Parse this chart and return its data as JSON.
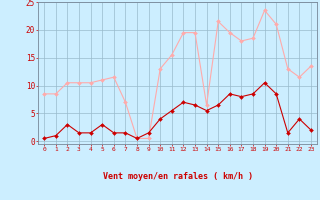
{
  "x": [
    0,
    1,
    2,
    3,
    4,
    5,
    6,
    7,
    8,
    9,
    10,
    11,
    12,
    13,
    14,
    15,
    16,
    17,
    18,
    19,
    20,
    21,
    22,
    23
  ],
  "rafales": [
    8.5,
    8.5,
    10.5,
    10.5,
    10.5,
    11.0,
    11.5,
    7.0,
    0.5,
    0.5,
    13.0,
    15.5,
    19.5,
    19.5,
    6.5,
    21.5,
    19.5,
    18.0,
    18.5,
    23.5,
    21.0,
    13.0,
    11.5,
    13.5
  ],
  "moyen": [
    0.5,
    1.0,
    3.0,
    1.5,
    1.5,
    3.0,
    1.5,
    1.5,
    0.5,
    1.5,
    4.0,
    5.5,
    7.0,
    6.5,
    5.5,
    6.5,
    8.5,
    8.0,
    8.5,
    10.5,
    8.5,
    1.5,
    4.0,
    2.0
  ],
  "rafales_color": "#ffaaaa",
  "moyen_color": "#cc0000",
  "bg_color": "#cceeff",
  "grid_color": "#99bbcc",
  "xlabel": "Vent moyen/en rafales ( km/h )",
  "xlabel_color": "#cc0000",
  "tick_color": "#cc0000",
  "ylim": [
    -0.5,
    25
  ],
  "yticks": [
    0,
    5,
    10,
    15,
    20,
    25
  ],
  "xlim": [
    -0.5,
    23.5
  ],
  "arrow_angles": [
    225,
    225,
    225,
    225,
    225,
    225,
    225,
    225,
    225,
    225,
    270,
    270,
    270,
    270,
    270,
    270,
    270,
    270,
    270,
    315,
    315,
    0,
    0,
    0
  ]
}
